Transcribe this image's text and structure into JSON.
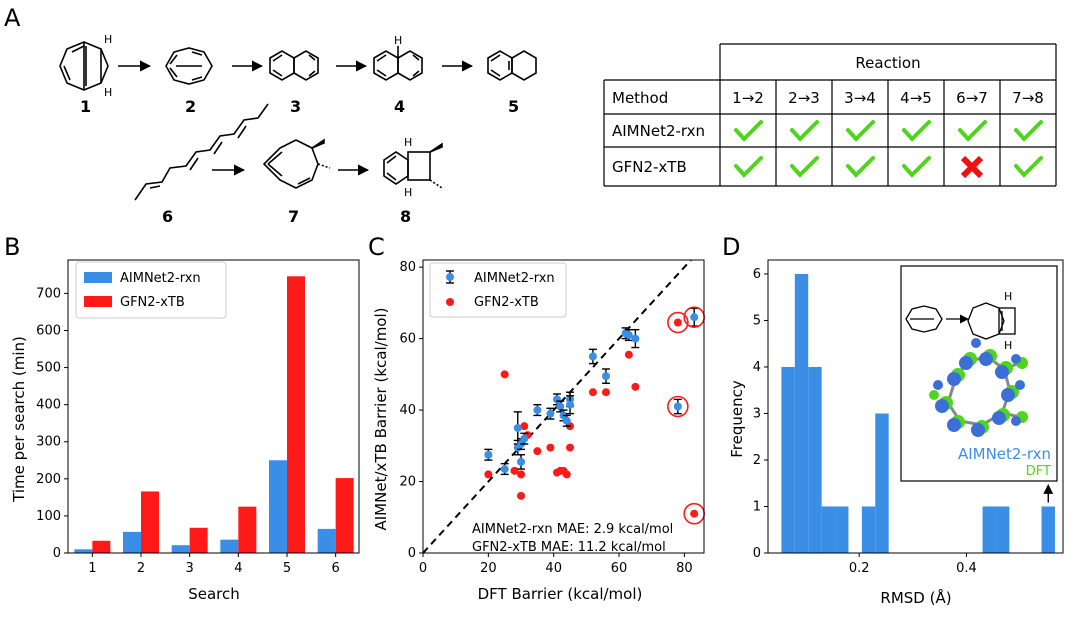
{
  "panels": {
    "a": "A",
    "b": "B",
    "c": "C",
    "d": "D"
  },
  "compounds": [
    "1",
    "2",
    "3",
    "4",
    "5",
    "6",
    "7",
    "8"
  ],
  "atoms": {
    "h": "H"
  },
  "reaction_table": {
    "header": "Reaction",
    "method_label": "Method",
    "reactions": [
      "1→2",
      "2→3",
      "3→4",
      "4→5",
      "6→7",
      "7→8"
    ],
    "rows": [
      {
        "method": "AIMNet2-rxn",
        "results": [
          true,
          true,
          true,
          true,
          true,
          true
        ]
      },
      {
        "method": "GFN2-xTB",
        "results": [
          true,
          true,
          true,
          true,
          false,
          true
        ]
      }
    ],
    "colors": {
      "check": "#4fd61c",
      "cross": "#ee1111"
    }
  },
  "chart_data": [
    {
      "type": "bar",
      "title": "",
      "xlabel": "Search",
      "ylabel": "Time per search (min)",
      "categories": [
        "1",
        "2",
        "3",
        "4",
        "5",
        "6"
      ],
      "series": [
        {
          "name": "AIMNet2-rxn",
          "color": "#3b8ee6",
          "values": [
            10,
            57,
            21,
            36,
            250,
            65
          ]
        },
        {
          "name": "GFN2-xTB",
          "color": "#ff1a1a",
          "values": [
            33,
            166,
            68,
            125,
            746,
            202
          ]
        }
      ],
      "ylim": [
        0,
        790
      ],
      "yticks": [
        0,
        100,
        200,
        300,
        400,
        500,
        600,
        700
      ],
      "legend": "top-left"
    },
    {
      "type": "scatter",
      "title": "",
      "xlabel": "DFT Barrier (kcal/mol)",
      "ylabel": "AIMNet/xTB Barrier (kcal/mol)",
      "xlim": [
        0,
        86
      ],
      "ylim": [
        0,
        82
      ],
      "xticks": [
        0,
        20,
        40,
        60,
        80
      ],
      "yticks": [
        0,
        20,
        40,
        60,
        80
      ],
      "legend": "top-left",
      "series": [
        {
          "name": "AIMNet2-rxn",
          "color": "#3b8ee6",
          "errorbars": true,
          "points": [
            [
              20,
              27.5,
              1.5
            ],
            [
              25,
              23.5,
              1.5
            ],
            [
              29,
              29.5,
              2
            ],
            [
              29,
              35,
              4.5
            ],
            [
              30,
              25.5,
              2
            ],
            [
              30,
              30.5,
              1.5
            ],
            [
              31,
              32,
              1.5
            ],
            [
              35,
              40,
              1.5
            ],
            [
              39,
              39,
              1.5
            ],
            [
              41,
              43,
              1.5
            ],
            [
              42,
              41,
              1.5
            ],
            [
              43,
              38.5,
              1.5
            ],
            [
              44,
              37,
              1.5
            ],
            [
              45,
              43,
              2
            ],
            [
              45,
              41.5,
              2.5
            ],
            [
              52,
              55,
              2
            ],
            [
              56,
              49.5,
              2
            ],
            [
              62,
              61.5,
              1.5
            ],
            [
              63,
              61,
              1.5
            ],
            [
              65,
              60,
              2.5
            ],
            [
              78,
              41,
              2
            ],
            [
              83,
              66,
              2.5
            ]
          ]
        },
        {
          "name": "GFN2-xTB",
          "color": "#ff1a1a",
          "errorbars": false,
          "points": [
            [
              20,
              22
            ],
            [
              25,
              50
            ],
            [
              28,
              23
            ],
            [
              30,
              22
            ],
            [
              30,
              16
            ],
            [
              31,
              35.5
            ],
            [
              32,
              33
            ],
            [
              35,
              28.5
            ],
            [
              39,
              29.5
            ],
            [
              41,
              22.5
            ],
            [
              42,
              23
            ],
            [
              43,
              23
            ],
            [
              44,
              22
            ],
            [
              45,
              29.5
            ],
            [
              45,
              35.5
            ],
            [
              52,
              45
            ],
            [
              56,
              45
            ],
            [
              63,
              55.5
            ],
            [
              65,
              46.5
            ],
            [
              78,
              64.5
            ],
            [
              83,
              11
            ]
          ]
        }
      ],
      "diagonal": "y = x",
      "circled_points": [
        [
          78,
          64.5
        ],
        [
          83,
          66
        ],
        [
          78,
          41
        ],
        [
          83,
          11
        ]
      ],
      "annotations": [
        "AIMNet2-rxn MAE: 2.9 kcal/mol",
        "GFN2-xTB MAE: 11.2 kcal/mol"
      ]
    },
    {
      "type": "bar",
      "title": "",
      "xlabel": "RMSD (Å)",
      "ylabel": "Frequency",
      "bins": [
        {
          "start": 0.055,
          "end": 0.08,
          "count": 4
        },
        {
          "start": 0.08,
          "end": 0.105,
          "count": 6
        },
        {
          "start": 0.105,
          "end": 0.13,
          "count": 4
        },
        {
          "start": 0.13,
          "end": 0.155,
          "count": 1
        },
        {
          "start": 0.155,
          "end": 0.18,
          "count": 1
        },
        {
          "start": 0.205,
          "end": 0.23,
          "count": 1
        },
        {
          "start": 0.23,
          "end": 0.255,
          "count": 3
        },
        {
          "start": 0.43,
          "end": 0.455,
          "count": 1
        },
        {
          "start": 0.455,
          "end": 0.48,
          "count": 1
        },
        {
          "start": 0.54,
          "end": 0.565,
          "count": 1
        }
      ],
      "color": "#3b8ee6",
      "xlim": [
        0.03,
        0.58
      ],
      "ylim": [
        0,
        6.3
      ],
      "xticks": [
        0.2,
        0.4
      ],
      "yticks": [
        0,
        1,
        2,
        3,
        4,
        5,
        6
      ],
      "inset_labels": [
        {
          "text": "AIMNet2-rxn",
          "color": "#3b8ee6"
        },
        {
          "text": "DFT",
          "color": "#4fd61c"
        }
      ]
    }
  ]
}
